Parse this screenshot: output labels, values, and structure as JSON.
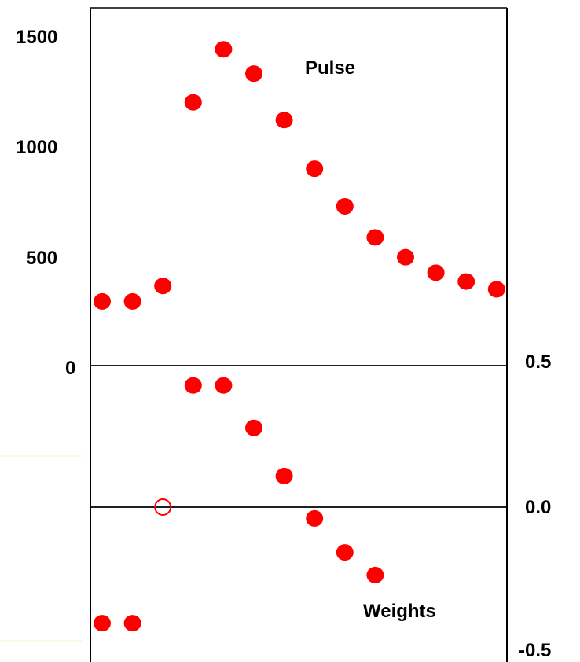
{
  "chart_data": [
    {
      "type": "scatter",
      "panel": "top",
      "series": [
        {
          "name": "Pulse",
          "x": [
            1,
            2,
            3,
            4,
            5,
            6,
            7,
            8,
            9,
            10,
            11,
            12,
            13,
            14
          ],
          "y": [
            290,
            290,
            360,
            1190,
            1430,
            1320,
            1110,
            890,
            720,
            580,
            490,
            420,
            380,
            345
          ]
        }
      ],
      "ylim": [
        0,
        1500
      ],
      "yticks": [
        "0",
        "500",
        "1000",
        "1500"
      ],
      "ytick_side": "left",
      "annotation": "Pulse",
      "grid": false
    },
    {
      "type": "scatter",
      "panel": "bottom",
      "series": [
        {
          "name": "Weights",
          "x": [
            1,
            2,
            3,
            4,
            5,
            6,
            7,
            8,
            9,
            10
          ],
          "y": [
            -0.41,
            -0.41,
            0.0,
            0.43,
            0.43,
            0.28,
            0.11,
            -0.04,
            -0.16,
            -0.24
          ],
          "hollow": [
            false,
            false,
            true,
            false,
            false,
            false,
            false,
            false,
            false,
            false
          ]
        }
      ],
      "ylim": [
        -0.5,
        0.5
      ],
      "yticks": [
        "0.5",
        "0.0",
        "-0.5"
      ],
      "ytick_side": "right",
      "annotation": "Weights",
      "grid": false
    }
  ],
  "colors": {
    "marker": "#ff0000",
    "axis": "#000000",
    "faint_line": "#fbf7d6"
  }
}
